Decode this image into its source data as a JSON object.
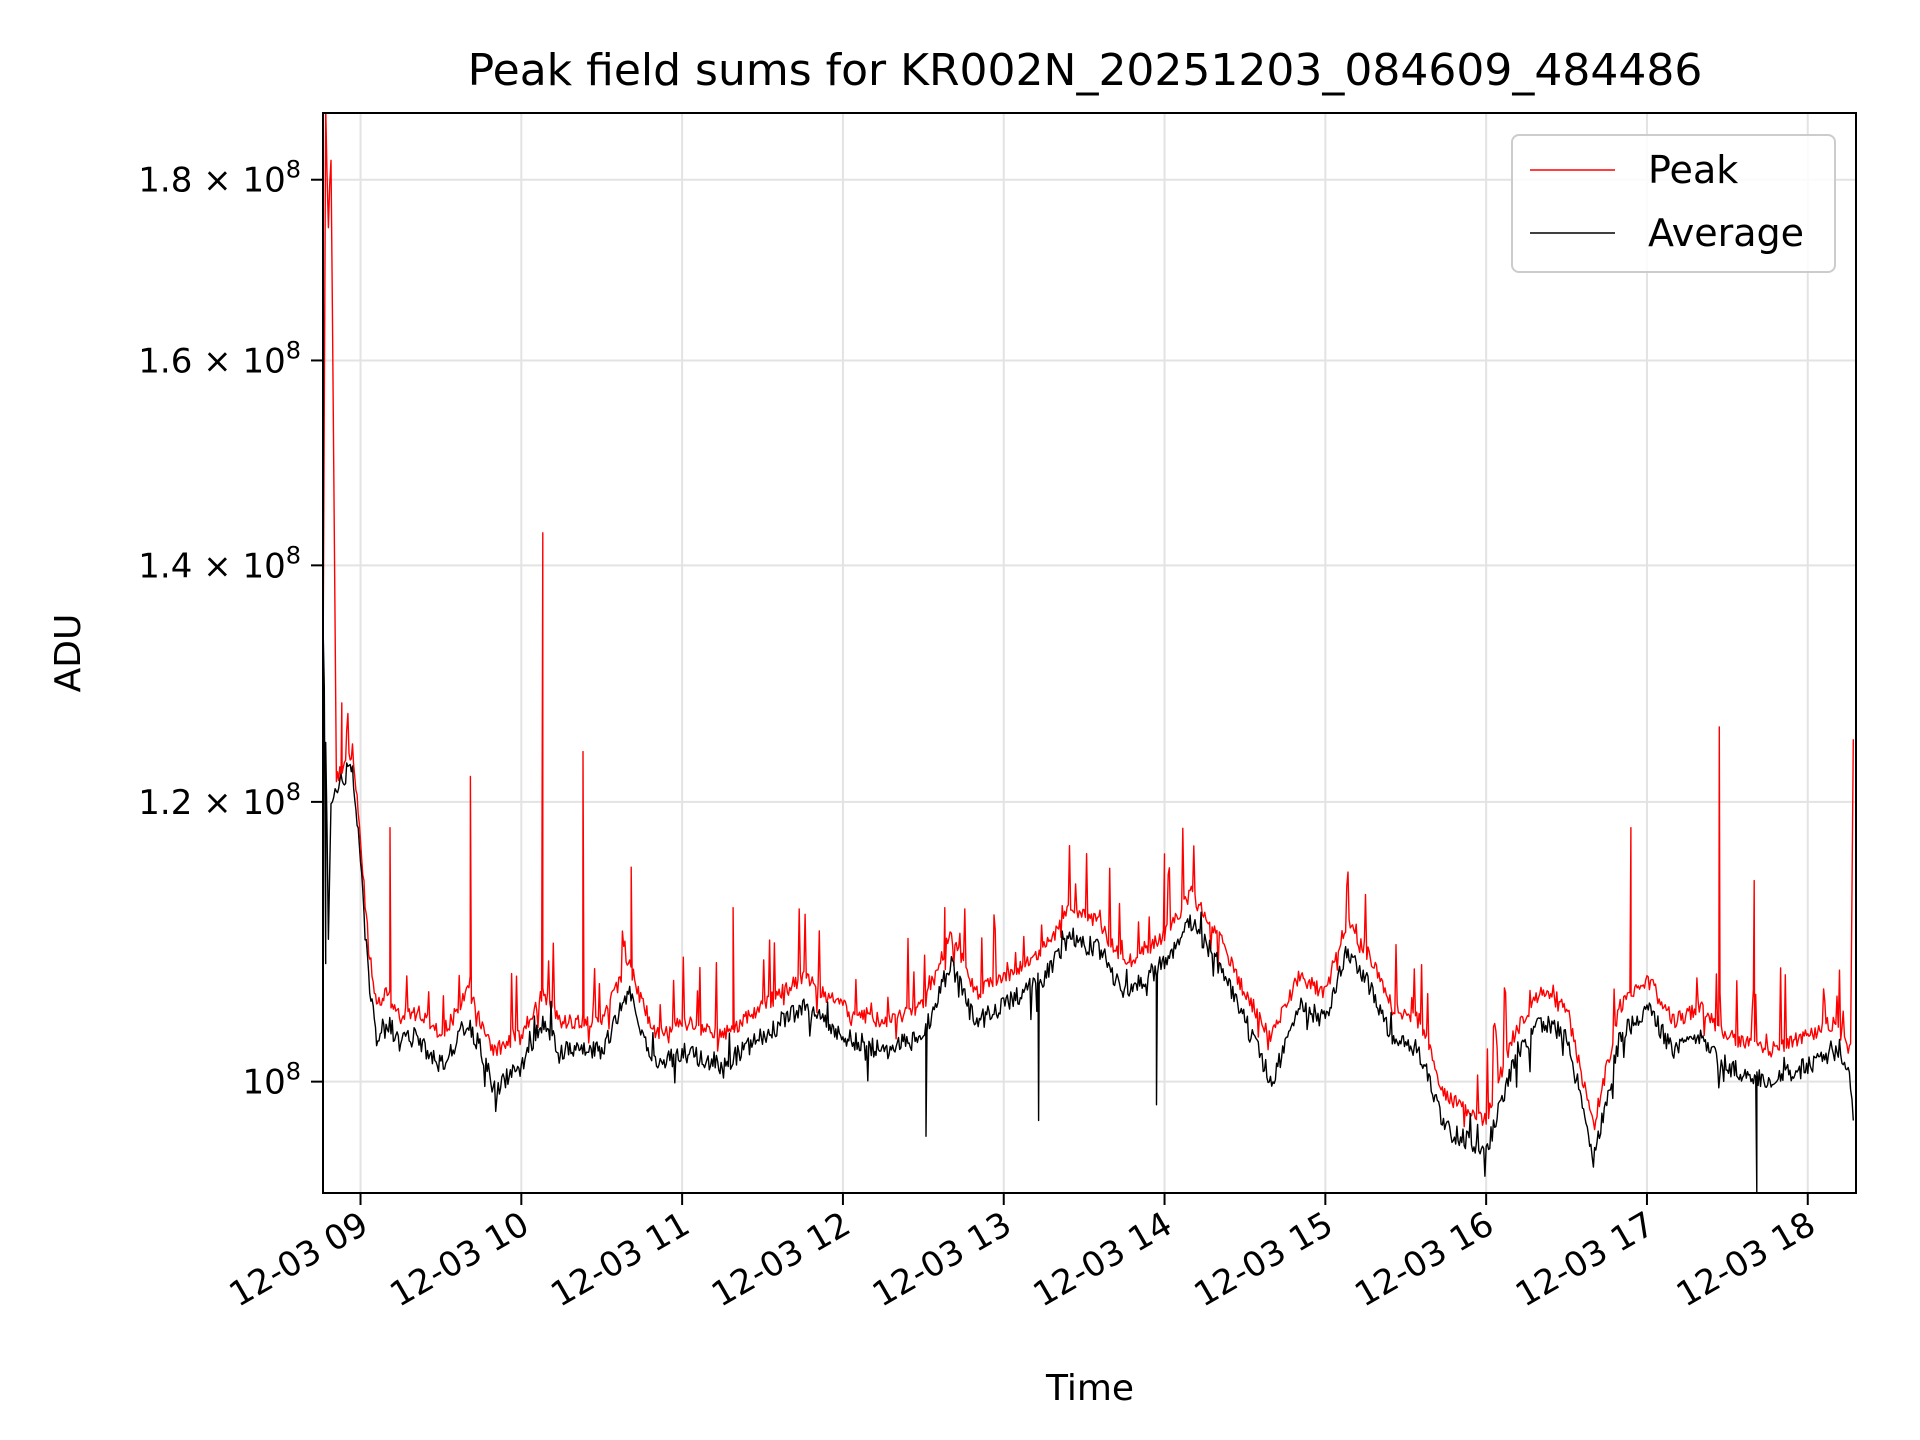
{
  "chart_data": {
    "type": "line",
    "title": "Peak field sums for KR002N_20251203_084609_484486",
    "xlabel": "Time",
    "ylabel": "ADU",
    "x_type": "datetime",
    "xlim": [
      "2025-12-03 08:46",
      "2025-12-03 18:18"
    ],
    "ylim": [
      93000000,
      188000000
    ],
    "yscale": "log",
    "grid": true,
    "legend_position": "top-right",
    "xticks": [
      "2025-12-03 09:00",
      "2025-12-03 10:00",
      "2025-12-03 11:00",
      "2025-12-03 12:00",
      "2025-12-03 13:00",
      "2025-12-03 14:00",
      "2025-12-03 15:00",
      "2025-12-03 16:00",
      "2025-12-03 17:00",
      "2025-12-03 18:00"
    ],
    "xtick_labels": [
      "12-03 09",
      "12-03 10",
      "12-03 11",
      "12-03 12",
      "12-03 13",
      "12-03 14",
      "12-03 15",
      "12-03 16",
      "12-03 17",
      "12-03 18"
    ],
    "yticks": [
      100000000,
      120000000,
      140000000,
      160000000,
      180000000
    ],
    "ytick_labels": [
      {
        "mant": "",
        "exp": "8"
      },
      {
        "mant": "1.2",
        "exp": "8"
      },
      {
        "mant": "1.4",
        "exp": "8"
      },
      {
        "mant": "1.6",
        "exp": "8"
      },
      {
        "mant": "1.8",
        "exp": "8"
      }
    ],
    "series": [
      {
        "name": "Peak",
        "color": "#ff0000",
        "points": [
          [
            "2025-12-03 08:46",
            130000000
          ],
          [
            "2025-12-03 08:47",
            188000000
          ],
          [
            "2025-12-03 08:48",
            175000000
          ],
          [
            "2025-12-03 08:49",
            183000000
          ],
          [
            "2025-12-03 08:51",
            122000000
          ],
          [
            "2025-12-03 08:54",
            123000000
          ],
          [
            "2025-12-03 08:57",
            124000000
          ],
          [
            "2025-12-03 09:00",
            117000000
          ],
          [
            "2025-12-03 09:03",
            109000000
          ],
          [
            "2025-12-03 09:06",
            105000000
          ],
          [
            "2025-12-03 09:10",
            106000000
          ],
          [
            "2025-12-03 09:15",
            104000000
          ],
          [
            "2025-12-03 09:20",
            105000000
          ],
          [
            "2025-12-03 09:30",
            103000000
          ],
          [
            "2025-12-03 09:40",
            106000000
          ],
          [
            "2025-12-03 09:45",
            104000000
          ],
          [
            "2025-12-03 09:50",
            102000000
          ],
          [
            "2025-12-03 10:00",
            103000000
          ],
          [
            "2025-12-03 10:08",
            106000000
          ],
          [
            "2025-12-03 10:15",
            104000000
          ],
          [
            "2025-12-03 10:30",
            104000000
          ],
          [
            "2025-12-03 10:40",
            108000000
          ],
          [
            "2025-12-03 10:50",
            103000000
          ],
          [
            "2025-12-03 11:00",
            104000000
          ],
          [
            "2025-12-03 11:15",
            103000000
          ],
          [
            "2025-12-03 11:30",
            105000000
          ],
          [
            "2025-12-03 11:45",
            107000000
          ],
          [
            "2025-12-03 12:00",
            105000000
          ],
          [
            "2025-12-03 12:15",
            104000000
          ],
          [
            "2025-12-03 12:30",
            105000000
          ],
          [
            "2025-12-03 12:40",
            110000000
          ],
          [
            "2025-12-03 12:50",
            106000000
          ],
          [
            "2025-12-03 13:00",
            107000000
          ],
          [
            "2025-12-03 13:15",
            109000000
          ],
          [
            "2025-12-03 13:25",
            112000000
          ],
          [
            "2025-12-03 13:35",
            111000000
          ],
          [
            "2025-12-03 13:45",
            108000000
          ],
          [
            "2025-12-03 14:00",
            110000000
          ],
          [
            "2025-12-03 14:10",
            113000000
          ],
          [
            "2025-12-03 14:20",
            110000000
          ],
          [
            "2025-12-03 14:30",
            106000000
          ],
          [
            "2025-12-03 14:40",
            103000000
          ],
          [
            "2025-12-03 14:50",
            107000000
          ],
          [
            "2025-12-03 15:00",
            106000000
          ],
          [
            "2025-12-03 15:08",
            111000000
          ],
          [
            "2025-12-03 15:15",
            109000000
          ],
          [
            "2025-12-03 15:25",
            105000000
          ],
          [
            "2025-12-03 15:35",
            104000000
          ],
          [
            "2025-12-03 15:45",
            99000000
          ],
          [
            "2025-12-03 15:55",
            98000000
          ],
          [
            "2025-12-03 16:00",
            97500000
          ],
          [
            "2025-12-03 16:10",
            103000000
          ],
          [
            "2025-12-03 16:20",
            106000000
          ],
          [
            "2025-12-03 16:30",
            105000000
          ],
          [
            "2025-12-03 16:40",
            97000000
          ],
          [
            "2025-12-03 16:50",
            105000000
          ],
          [
            "2025-12-03 17:00",
            107000000
          ],
          [
            "2025-12-03 17:10",
            104000000
          ],
          [
            "2025-12-03 17:20",
            105000000
          ],
          [
            "2025-12-03 17:30",
            103000000
          ],
          [
            "2025-12-03 17:45",
            102000000
          ],
          [
            "2025-12-03 18:00",
            103000000
          ],
          [
            "2025-12-03 18:10",
            104000000
          ],
          [
            "2025-12-03 18:16",
            102000000
          ],
          [
            "2025-12-03 18:17",
            125000000
          ]
        ],
        "spikes": [
          [
            "2025-12-03 08:53",
            128000000
          ],
          [
            "2025-12-03 09:11",
            118000000
          ],
          [
            "2025-12-03 09:41",
            122000000
          ],
          [
            "2025-12-03 10:08",
            143000000
          ],
          [
            "2025-12-03 10:23",
            124000000
          ],
          [
            "2025-12-03 10:41",
            115000000
          ],
          [
            "2025-12-03 11:19",
            112000000
          ],
          [
            "2025-12-03 12:38",
            112000000
          ],
          [
            "2025-12-03 14:00",
            116000000
          ],
          [
            "2025-12-03 14:11",
            116000000
          ],
          [
            "2025-12-03 16:54",
            118000000
          ],
          [
            "2025-12-03 17:27",
            126000000
          ],
          [
            "2025-12-03 17:40",
            114000000
          ]
        ]
      },
      {
        "name": "Average",
        "color": "#000000",
        "points": [
          [
            "2025-12-03 08:46",
            135000000
          ],
          [
            "2025-12-03 08:47",
            125000000
          ],
          [
            "2025-12-03 08:48",
            110000000
          ],
          [
            "2025-12-03 08:49",
            120000000
          ],
          [
            "2025-12-03 08:51",
            121000000
          ],
          [
            "2025-12-03 08:54",
            122000000
          ],
          [
            "2025-12-03 08:57",
            123000000
          ],
          [
            "2025-12-03 09:00",
            115000000
          ],
          [
            "2025-12-03 09:03",
            107000000
          ],
          [
            "2025-12-03 09:06",
            103000000
          ],
          [
            "2025-12-03 09:10",
            104000000
          ],
          [
            "2025-12-03 09:15",
            102500000
          ],
          [
            "2025-12-03 09:20",
            103000000
          ],
          [
            "2025-12-03 09:30",
            101000000
          ],
          [
            "2025-12-03 09:40",
            104000000
          ],
          [
            "2025-12-03 09:45",
            102000000
          ],
          [
            "2025-12-03 09:50",
            99500000
          ],
          [
            "2025-12-03 10:00",
            101000000
          ],
          [
            "2025-12-03 10:08",
            104000000
          ],
          [
            "2025-12-03 10:15",
            102000000
          ],
          [
            "2025-12-03 10:30",
            102000000
          ],
          [
            "2025-12-03 10:40",
            106000000
          ],
          [
            "2025-12-03 10:50",
            101000000
          ],
          [
            "2025-12-03 11:00",
            102000000
          ],
          [
            "2025-12-03 11:15",
            101000000
          ],
          [
            "2025-12-03 11:30",
            103000000
          ],
          [
            "2025-12-03 11:45",
            105000000
          ],
          [
            "2025-12-03 12:00",
            103000000
          ],
          [
            "2025-12-03 12:15",
            102000000
          ],
          [
            "2025-12-03 12:30",
            103000000
          ],
          [
            "2025-12-03 12:40",
            108000000
          ],
          [
            "2025-12-03 12:50",
            104000000
          ],
          [
            "2025-12-03 13:00",
            105000000
          ],
          [
            "2025-12-03 13:15",
            107000000
          ],
          [
            "2025-12-03 13:25",
            110000000
          ],
          [
            "2025-12-03 13:35",
            109000000
          ],
          [
            "2025-12-03 13:45",
            106000000
          ],
          [
            "2025-12-03 14:00",
            108000000
          ],
          [
            "2025-12-03 14:10",
            111000000
          ],
          [
            "2025-12-03 14:20",
            108000000
          ],
          [
            "2025-12-03 14:30",
            104000000
          ],
          [
            "2025-12-03 14:40",
            100000000
          ],
          [
            "2025-12-03 14:50",
            105000000
          ],
          [
            "2025-12-03 15:00",
            104000000
          ],
          [
            "2025-12-03 15:08",
            109000000
          ],
          [
            "2025-12-03 15:15",
            107000000
          ],
          [
            "2025-12-03 15:25",
            103000000
          ],
          [
            "2025-12-03 15:35",
            102000000
          ],
          [
            "2025-12-03 15:45",
            97000000
          ],
          [
            "2025-12-03 15:55",
            96000000
          ],
          [
            "2025-12-03 16:00",
            95500000
          ],
          [
            "2025-12-03 16:10",
            101000000
          ],
          [
            "2025-12-03 16:20",
            104000000
          ],
          [
            "2025-12-03 16:30",
            103000000
          ],
          [
            "2025-12-03 16:40",
            95000000
          ],
          [
            "2025-12-03 16:50",
            103000000
          ],
          [
            "2025-12-03 17:00",
            105000000
          ],
          [
            "2025-12-03 17:10",
            102000000
          ],
          [
            "2025-12-03 17:20",
            103000000
          ],
          [
            "2025-12-03 17:30",
            101000000
          ],
          [
            "2025-12-03 17:45",
            100000000
          ],
          [
            "2025-12-03 18:00",
            101000000
          ],
          [
            "2025-12-03 18:10",
            102000000
          ],
          [
            "2025-12-03 18:16",
            100000000
          ],
          [
            "2025-12-03 18:17",
            97500000
          ]
        ],
        "spikes": [
          [
            "2025-12-03 08:47",
            108000000
          ],
          [
            "2025-12-03 12:31",
            96500000
          ],
          [
            "2025-12-03 13:13",
            97500000
          ],
          [
            "2025-12-03 13:57",
            98500000
          ],
          [
            "2025-12-03 17:41",
            93000000
          ]
        ]
      }
    ]
  }
}
